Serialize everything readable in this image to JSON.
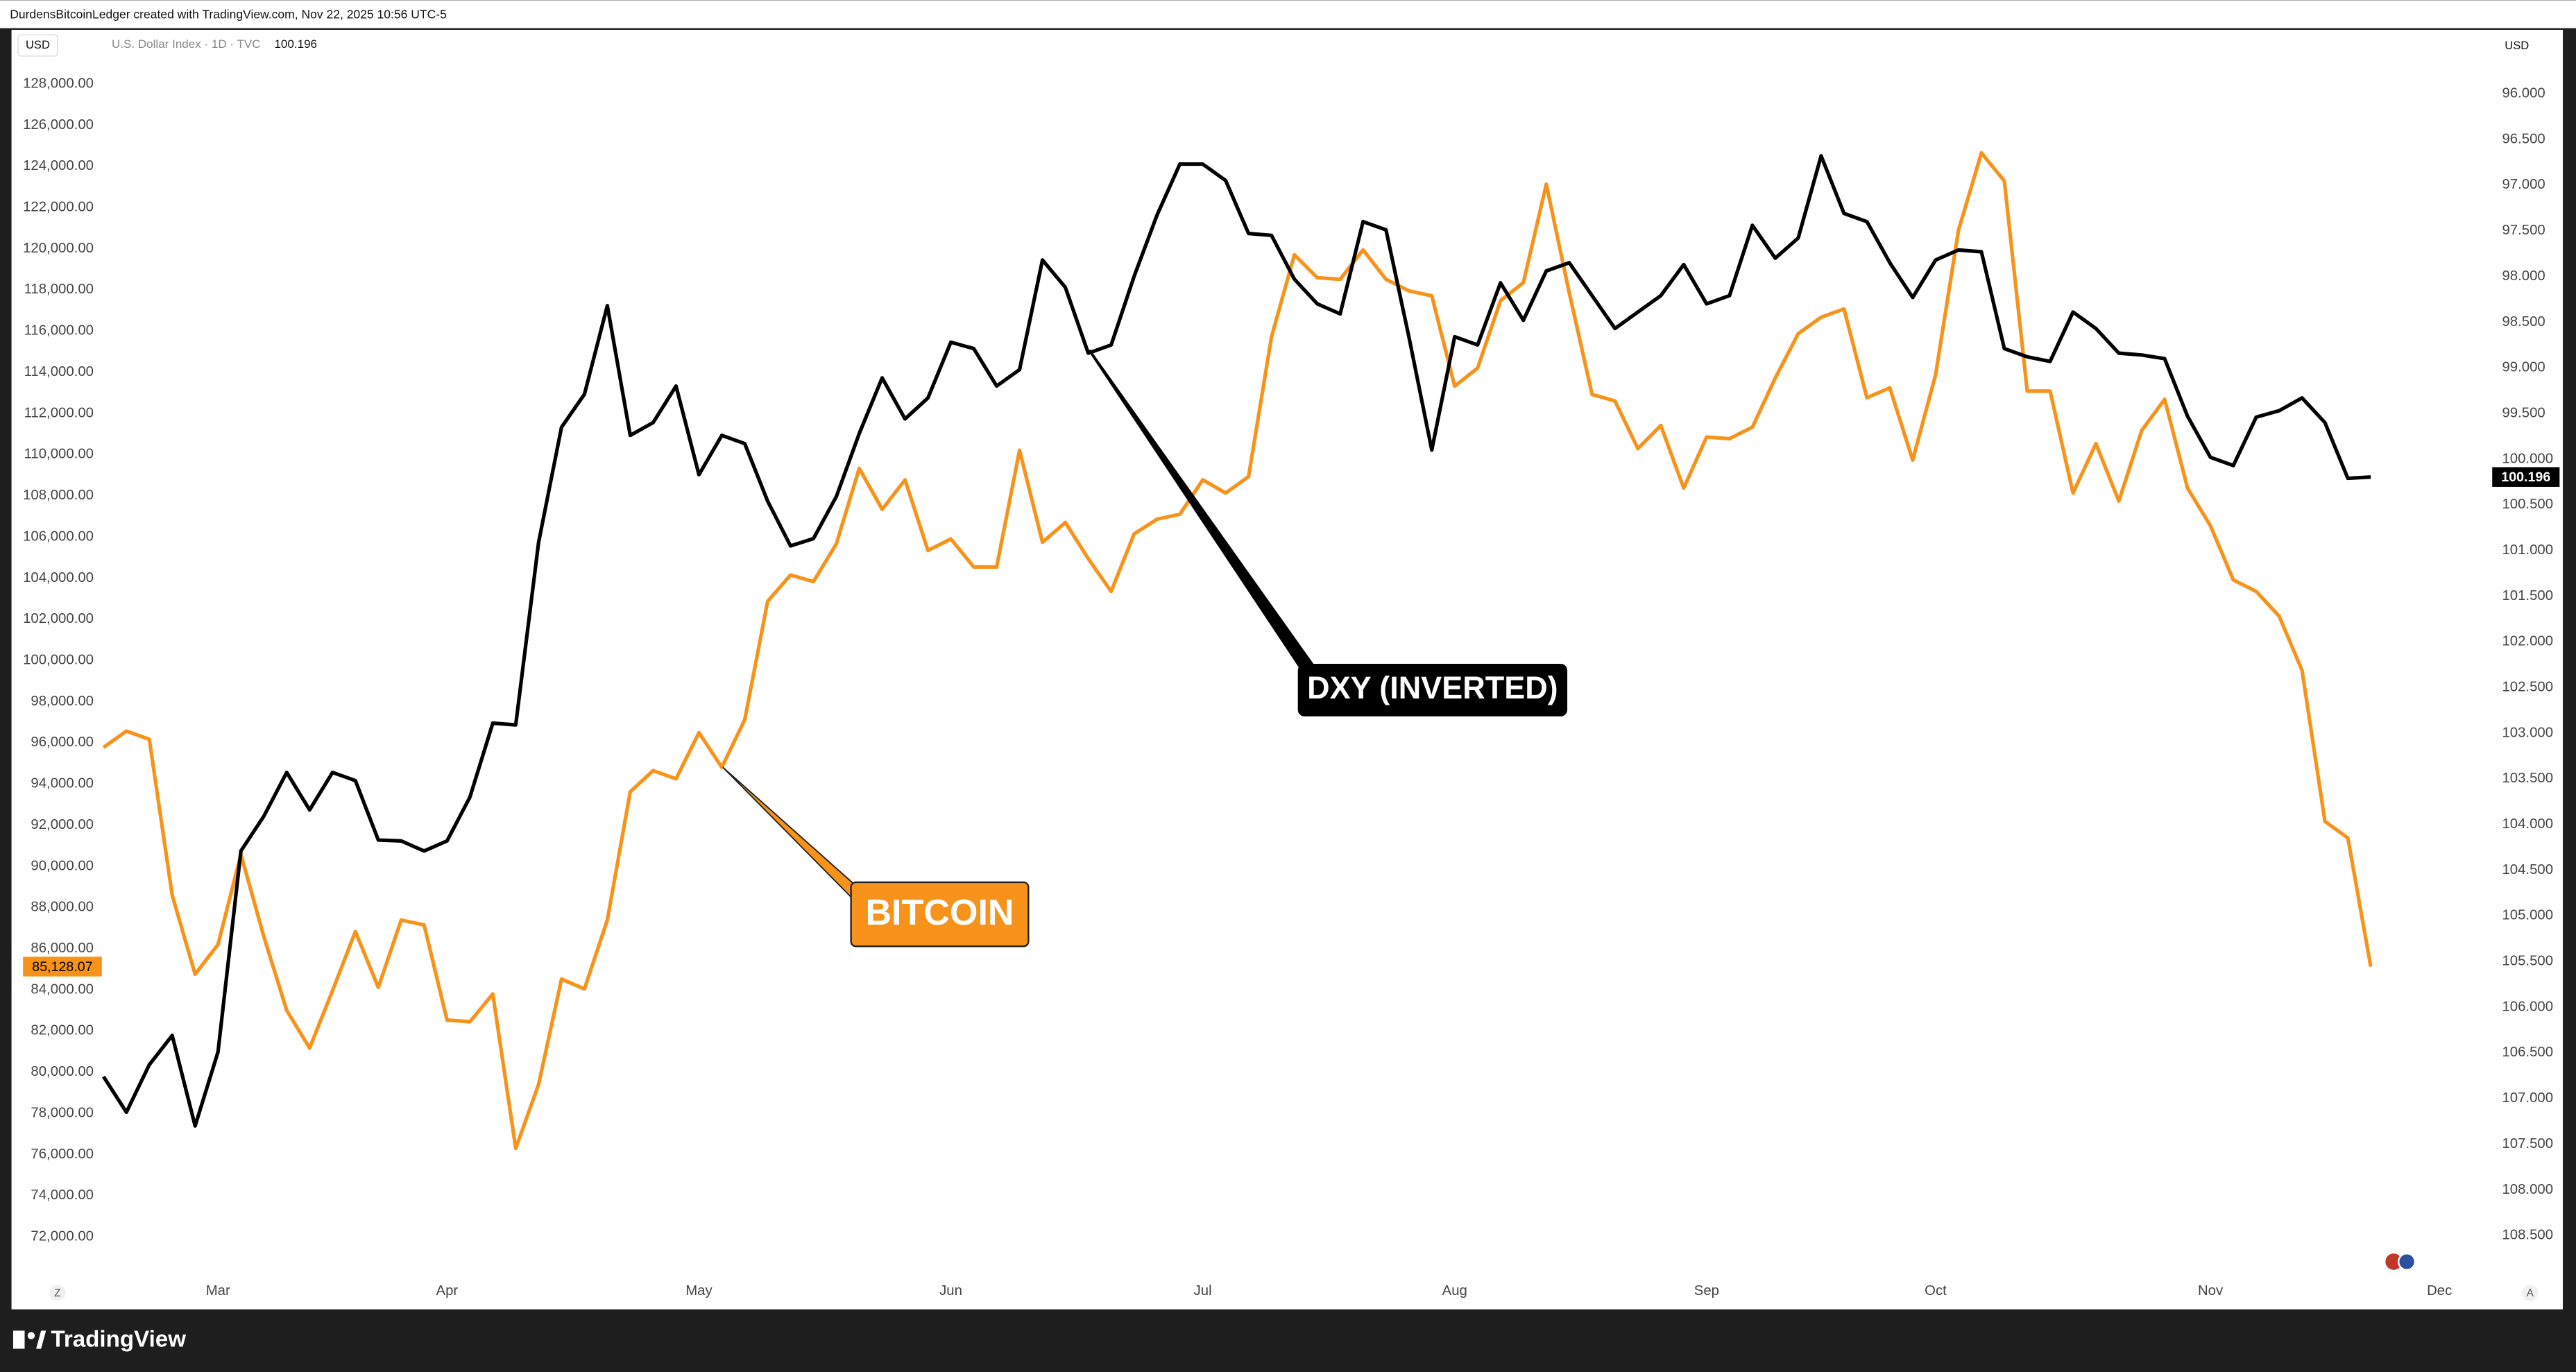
{
  "header": {
    "text": "DurdensBitcoinLedger created with TradingView.com, Nov 22, 2025 10:56 UTC-5"
  },
  "chart_data": {
    "type": "line",
    "left_unit": "USD",
    "right_unit": "USD",
    "legend": {
      "symbol": "U.S. Dollar Index · 1D · TVC"
    },
    "categories": [
      null,
      null,
      null,
      null,
      null,
      "Mar",
      null,
      null,
      null,
      null,
      null,
      null,
      null,
      null,
      null,
      "Apr",
      null,
      null,
      null,
      null,
      null,
      null,
      null,
      null,
      null,
      null,
      "May",
      null,
      null,
      null,
      null,
      null,
      null,
      null,
      null,
      null,
      null,
      "Jun",
      null,
      null,
      null,
      null,
      null,
      null,
      null,
      null,
      null,
      null,
      "Jul",
      null,
      null,
      null,
      null,
      null,
      null,
      null,
      null,
      null,
      null,
      "Aug",
      null,
      null,
      null,
      null,
      null,
      null,
      null,
      null,
      null,
      null,
      "Sep",
      null,
      null,
      null,
      null,
      null,
      null,
      null,
      null,
      null,
      "Oct",
      null,
      null,
      null,
      null,
      null,
      null,
      null,
      null,
      null,
      null,
      null,
      "Nov",
      null,
      null,
      null,
      null,
      null,
      null,
      null,
      null,
      null,
      "Dec"
    ],
    "series": [
      {
        "name": "BITCOIN",
        "color": "#f7931a",
        "axis": "y",
        "last_label": "85,128.07",
        "values": [
          95770,
          96570,
          96170,
          88590,
          84760,
          86200,
          90580,
          86590,
          83000,
          81170,
          83960,
          86830,
          84120,
          87390,
          87150,
          82530,
          82450,
          83800,
          76300,
          79410,
          84520,
          84040,
          87390,
          93620,
          94650,
          94250,
          96490,
          94810,
          97120,
          102870,
          104150,
          103830,
          105660,
          109330,
          107340,
          108770,
          105340,
          105900,
          104540,
          104540,
          110210,
          105740,
          106700,
          104940,
          103350,
          106140,
          106860,
          107100,
          108770,
          108130,
          108930,
          115710,
          119700,
          118590,
          118510,
          119940,
          118510,
          117950,
          117710,
          113320,
          114200,
          117470,
          118350,
          123130,
          117870,
          112920,
          112600,
          110290,
          111410,
          108370,
          110850,
          110770,
          111330,
          113720,
          115870,
          116670,
          117070,
          112760,
          113240,
          109730,
          113880,
          120900,
          124650,
          123290,
          113080,
          113080,
          108130,
          110530,
          107740,
          111170,
          112680,
          108370,
          106540,
          103910,
          103350,
          102150,
          99520,
          92180,
          91380,
          85128.07,
          null,
          null,
          null
        ]
      },
      {
        "name": "DXY (INVERTED)",
        "color": "#000000",
        "axis": "y2",
        "values": [
          106.76,
          107.15,
          106.63,
          106.31,
          107.3,
          106.49,
          104.29,
          103.91,
          103.43,
          103.84,
          103.43,
          103.52,
          104.17,
          104.18,
          104.29,
          104.18,
          103.7,
          102.89,
          102.91,
          100.91,
          99.65,
          99.29,
          98.32,
          99.74,
          99.6,
          99.2,
          100.17,
          99.74,
          99.83,
          100.46,
          100.95,
          100.87,
          100.41,
          99.72,
          99.11,
          99.56,
          99.33,
          98.72,
          98.79,
          99.2,
          99.02,
          97.82,
          98.12,
          98.84,
          98.75,
          98.0,
          97.33,
          96.77,
          96.77,
          96.95,
          97.53,
          97.55,
          98.03,
          98.3,
          98.41,
          97.4,
          97.49,
          98.66,
          99.9,
          98.66,
          98.75,
          98.07,
          98.48,
          97.94,
          97.85,
          98.21,
          98.57,
          98.39,
          98.21,
          97.87,
          98.3,
          98.21,
          97.44,
          97.8,
          97.58,
          96.68,
          97.31,
          97.4,
          97.85,
          98.23,
          97.82,
          97.71,
          97.73,
          98.79,
          98.88,
          98.93,
          98.39,
          98.57,
          98.84,
          98.86,
          98.9,
          99.53,
          99.98,
          100.07,
          99.54,
          99.47,
          99.33,
          99.6,
          100.21,
          100.196,
          null,
          null,
          null
        ]
      }
    ],
    "ylim": [
      68560,
      130630
    ],
    "yticks": [
      {
        "value": 72000,
        "label": "72,000.00"
      },
      {
        "value": 74000,
        "label": "74,000.00"
      },
      {
        "value": 76000,
        "label": "76,000.00"
      },
      {
        "value": 78000,
        "label": "78,000.00"
      },
      {
        "value": 80000,
        "label": "80,000.00"
      },
      {
        "value": 82000,
        "label": "82,000.00"
      },
      {
        "value": 84000,
        "label": "84,000.00"
      },
      {
        "value": 86000,
        "label": "86,000.00"
      },
      {
        "value": 88000,
        "label": "88,000.00"
      },
      {
        "value": 90000,
        "label": "90,000.00"
      },
      {
        "value": 92000,
        "label": "92,000.00"
      },
      {
        "value": 94000,
        "label": "94,000.00"
      },
      {
        "value": 96000,
        "label": "96,000.00"
      },
      {
        "value": 98000,
        "label": "98,000.00"
      },
      {
        "value": 100000,
        "label": "100,000.00"
      },
      {
        "value": 102000,
        "label": "102,000.00"
      },
      {
        "value": 104000,
        "label": "104,000.00"
      },
      {
        "value": 106000,
        "label": "106,000.00"
      },
      {
        "value": 108000,
        "label": "108,000.00"
      },
      {
        "value": 110000,
        "label": "110,000.00"
      },
      {
        "value": 112000,
        "label": "112,000.00"
      },
      {
        "value": 114000,
        "label": "114,000.00"
      },
      {
        "value": 116000,
        "label": "116,000.00"
      },
      {
        "value": 118000,
        "label": "118,000.00"
      },
      {
        "value": 120000,
        "label": "120,000.00"
      },
      {
        "value": 122000,
        "label": "122,000.00"
      },
      {
        "value": 124000,
        "label": "124,000.00"
      },
      {
        "value": 126000,
        "label": "126,000.00"
      },
      {
        "value": 128000,
        "label": "128,000.00"
      }
    ],
    "y2lim": [
      109.29,
      95.3
    ],
    "y2ticks": [
      {
        "value": 96,
        "label": "96.000"
      },
      {
        "value": 96.5,
        "label": "96.500"
      },
      {
        "value": 97,
        "label": "97.000"
      },
      {
        "value": 97.5,
        "label": "97.500"
      },
      {
        "value": 98,
        "label": "98.000"
      },
      {
        "value": 98.5,
        "label": "98.500"
      },
      {
        "value": 99,
        "label": "99.000"
      },
      {
        "value": 99.5,
        "label": "99.500"
      },
      {
        "value": 100,
        "label": "100.000"
      },
      {
        "value": 100.5,
        "label": "100.500"
      },
      {
        "value": 101,
        "label": "101.000"
      },
      {
        "value": 101.5,
        "label": "101.500"
      },
      {
        "value": 102,
        "label": "102.000"
      },
      {
        "value": 102.5,
        "label": "102.500"
      },
      {
        "value": 103,
        "label": "103.000"
      },
      {
        "value": 103.5,
        "label": "103.500"
      },
      {
        "value": 104,
        "label": "104.000"
      },
      {
        "value": 104.5,
        "label": "104.500"
      },
      {
        "value": 105,
        "label": "105.000"
      },
      {
        "value": 105.5,
        "label": "105.500"
      },
      {
        "value": 106,
        "label": "106.000"
      },
      {
        "value": 106.5,
        "label": "106.500"
      },
      {
        "value": 107,
        "label": "107.000"
      },
      {
        "value": 107.5,
        "label": "107.500"
      },
      {
        "value": 108,
        "label": "108.000"
      },
      {
        "value": 108.5,
        "label": "108.500"
      }
    ],
    "grid": false
  },
  "footer": {
    "brand": "TradingView",
    "left_button": "Z",
    "right_button": "A"
  }
}
